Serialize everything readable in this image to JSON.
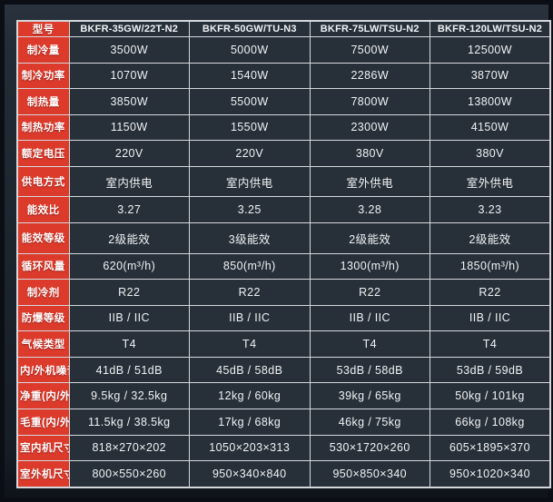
{
  "colors": {
    "label_bg": "#dc3a2b",
    "cell_bg": "#273039",
    "grid": "#d4d8dc",
    "text": "#eff2f4",
    "bg_top": "#2b333f",
    "bg_bottom": "#0e1218"
  },
  "table": {
    "header": {
      "label": "型号",
      "models": [
        "BKFR-35GW/22T-N2",
        "BKFR-50GW/TU-N3",
        "BKFR-75LW/TSU-N2",
        "BKFR-120LW/TSU-N2"
      ]
    },
    "rows": [
      {
        "label": "制冷量",
        "values": [
          "3500W",
          "5000W",
          "7500W",
          "12500W"
        ]
      },
      {
        "label": "制冷功率",
        "values": [
          "1070W",
          "1540W",
          "2286W",
          "3870W"
        ]
      },
      {
        "label": "制热量",
        "values": [
          "3850W",
          "5500W",
          "7800W",
          "13800W"
        ]
      },
      {
        "label": "制热功率",
        "values": [
          "1150W",
          "1550W",
          "2300W",
          "4150W"
        ]
      },
      {
        "label": "额定电压",
        "values": [
          "220V",
          "220V",
          "380V",
          "380V"
        ]
      },
      {
        "label": "供电方式",
        "values": [
          "室内供电",
          "室内供电",
          "室外供电",
          "室外供电"
        ]
      },
      {
        "label": "能效比",
        "values": [
          "3.27",
          "3.25",
          "3.28",
          "3.23"
        ]
      },
      {
        "label": "能效等级",
        "values": [
          "2级能效",
          "3级能效",
          "2级能效",
          "2级能效"
        ]
      },
      {
        "label": "循环风量",
        "values": [
          "620(m³/h)",
          "850(m³/h)",
          "1300(m³/h)",
          "1850(m³/h)"
        ]
      },
      {
        "label": "制冷剂",
        "values": [
          "R22",
          "R22",
          "R22",
          "R22"
        ]
      },
      {
        "label": "防爆等级",
        "values": [
          "IIB / IIC",
          "IIB / IIC",
          "IIB / IIC",
          "IIB / IIC"
        ]
      },
      {
        "label": "气候类型",
        "values": [
          "T4",
          "T4",
          "T4",
          "T4"
        ]
      },
      {
        "label": "内/外机噪音",
        "values": [
          "41dB / 51dB",
          "45dB / 58dB",
          "53dB / 58dB",
          "53dB / 59dB"
        ]
      },
      {
        "label": "净重(内/外)",
        "values": [
          "9.5kg / 32.5kg",
          "12kg / 60kg",
          "39kg / 65kg",
          "50kg / 101kg"
        ]
      },
      {
        "label": "毛重(内/外)",
        "values": [
          "11.5kg / 38.5kg",
          "17kg / 68kg",
          "46kg / 75kg",
          "66kg / 108kg"
        ]
      },
      {
        "label": "室内机尺寸",
        "values": [
          "818×270×202",
          "1050×203×313",
          "530×1720×260",
          "605×1895×370"
        ]
      },
      {
        "label": "室外机尺寸",
        "values": [
          "800×550×260",
          "950×340×840",
          "950×850×340",
          "950×1020×340"
        ]
      }
    ]
  }
}
